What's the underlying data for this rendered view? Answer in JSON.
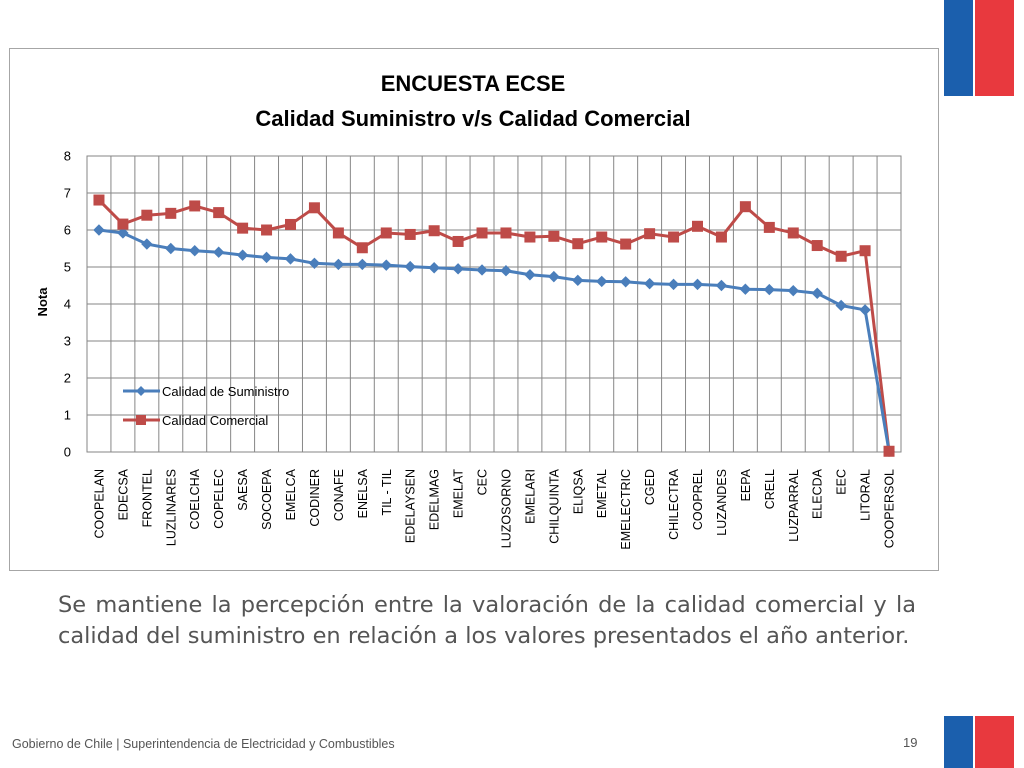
{
  "chart_data": {
    "type": "line",
    "title": "ENCUESTA ECSE",
    "subtitle": "Calidad Suministro v/s Calidad Comercial",
    "ylabel": "Nota",
    "xlabel": "",
    "ylim": [
      0,
      8
    ],
    "yticks": [
      "0",
      "1",
      "2",
      "3",
      "4",
      "5",
      "6",
      "7",
      "8"
    ],
    "grid": true,
    "legend_position": "lower-left",
    "categories": [
      "COOPELAN",
      "EDECSA",
      "FRONTEL",
      "LUZLINARES",
      "COELCHA",
      "COPELEC",
      "SAESA",
      "SOCOEPA",
      "EMELCA",
      "CODINER",
      "CONAFE",
      "ENELSA",
      "TIL - TIL",
      "EDELAYSEN",
      "EDELMAG",
      "EMELAT",
      "CEC",
      "LUZOSORNO",
      "EMELARI",
      "CHILQUINTA",
      "ELIQSA",
      "EMETAL",
      "EMELECTRIC",
      "CGED",
      "CHILECTRA",
      "COOPREL",
      "LUZANDES",
      "EEPA",
      "CRELL",
      "LUZPARRAL",
      "ELECDA",
      "EEC",
      "LITORAL",
      "COOPERSOL"
    ],
    "series": [
      {
        "name": "Calidad de Suministro",
        "color": "#4a7ebb",
        "marker": "diamond",
        "values": [
          6.0,
          5.92,
          5.62,
          5.5,
          5.44,
          5.4,
          5.32,
          5.26,
          5.22,
          5.1,
          5.07,
          5.07,
          5.05,
          5.01,
          4.98,
          4.95,
          4.92,
          4.9,
          4.79,
          4.74,
          4.64,
          4.61,
          4.6,
          4.55,
          4.53,
          4.53,
          4.5,
          4.4,
          4.39,
          4.36,
          4.29,
          3.96,
          3.84,
          0.02
        ]
      },
      {
        "name": "Calidad Comercial",
        "color": "#be4b48",
        "marker": "square",
        "values": [
          6.81,
          6.16,
          6.4,
          6.45,
          6.65,
          6.47,
          6.05,
          6.0,
          6.15,
          6.6,
          5.92,
          5.52,
          5.92,
          5.88,
          5.98,
          5.69,
          5.92,
          5.92,
          5.81,
          5.83,
          5.63,
          5.81,
          5.62,
          5.9,
          5.81,
          6.1,
          5.81,
          6.63,
          6.07,
          5.92,
          5.58,
          5.29,
          5.44,
          0.02
        ]
      }
    ]
  },
  "body_text": "Se mantiene la percepción entre la valoración de la calidad comercial y la calidad del suministro en relación a los valores presentados el año anterior.",
  "footer": "Gobierno de Chile | Superintendencia de Electricidad y Combustibles",
  "page_number": "19",
  "colors": {
    "flag_blue": "#1b5fad",
    "flag_red": "#e8393e"
  }
}
